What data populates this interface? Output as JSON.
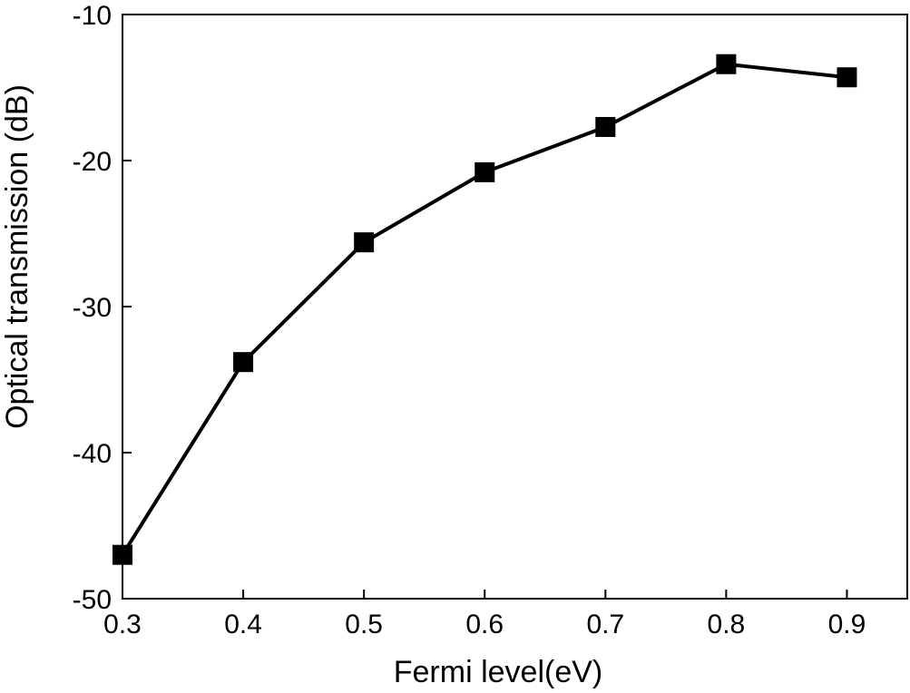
{
  "chart_data": {
    "type": "line",
    "title": "",
    "xlabel": "Fermi level(eV)",
    "ylabel": "Optical transmission (dB)",
    "xlim": [
      0.3,
      0.95
    ],
    "ylim": [
      -50,
      -10
    ],
    "xticks": [
      0.3,
      0.4,
      0.5,
      0.6,
      0.7,
      0.8,
      0.9
    ],
    "xtick_labels": [
      "0.3",
      "0.4",
      "0.5",
      "0.6",
      "0.7",
      "0.8",
      "0.9"
    ],
    "yticks": [
      -10,
      -20,
      -30,
      -40,
      -50
    ],
    "ytick_labels": [
      "-10",
      "-20",
      "-30",
      "-40",
      "-50"
    ],
    "grid": false,
    "series": [
      {
        "marker": "square",
        "color": "#000000",
        "x": [
          0.3,
          0.4,
          0.5,
          0.6,
          0.7,
          0.8,
          0.9
        ],
        "y": [
          -47.0,
          -33.8,
          -25.6,
          -20.8,
          -17.7,
          -13.4,
          -14.3
        ]
      }
    ]
  }
}
